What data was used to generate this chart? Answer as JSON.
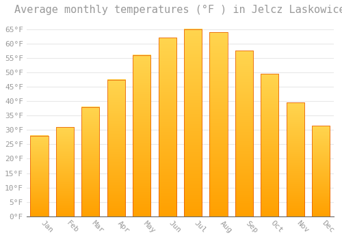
{
  "title": "Average monthly temperatures (°F ) in Jelcz Laskowice",
  "months": [
    "Jan",
    "Feb",
    "Mar",
    "Apr",
    "May",
    "Jun",
    "Jul",
    "Aug",
    "Sep",
    "Oct",
    "Nov",
    "Dec"
  ],
  "values": [
    28.0,
    31.0,
    38.0,
    47.5,
    56.0,
    62.0,
    65.0,
    64.0,
    57.5,
    49.5,
    39.5,
    31.5
  ],
  "bar_color_top": "#FFD54F",
  "bar_color_bottom": "#FFA000",
  "bar_edge_color": "#E65100",
  "background_color": "#FFFFFF",
  "grid_color": "#E8E8E8",
  "ylabel_ticks": [
    0,
    5,
    10,
    15,
    20,
    25,
    30,
    35,
    40,
    45,
    50,
    55,
    60,
    65
  ],
  "ylim": [
    0,
    68
  ],
  "title_fontsize": 11,
  "tick_fontsize": 8,
  "font_color": "#999999",
  "font_family": "monospace"
}
